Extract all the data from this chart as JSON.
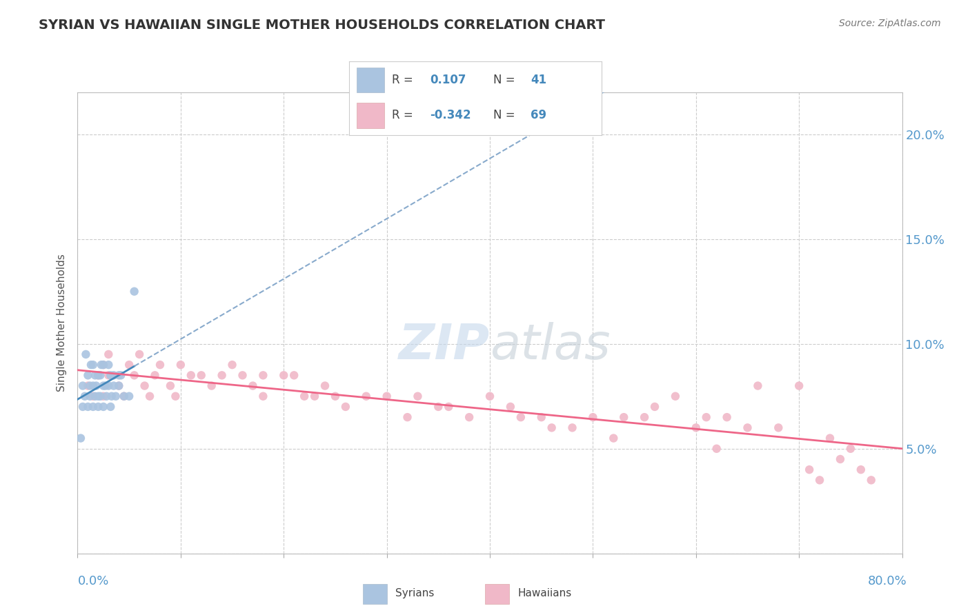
{
  "title": "SYRIAN VS HAWAIIAN SINGLE MOTHER HOUSEHOLDS CORRELATION CHART",
  "source": "Source: ZipAtlas.com",
  "ylabel": "Single Mother Households",
  "xlim": [
    0.0,
    80.0
  ],
  "ylim": [
    0.0,
    22.0
  ],
  "yticks": [
    0.0,
    5.0,
    10.0,
    15.0,
    20.0
  ],
  "xticks": [
    0,
    10,
    20,
    30,
    40,
    50,
    60,
    70,
    80
  ],
  "background_color": "#ffffff",
  "grid_color": "#cccccc",
  "syrians_color": "#aac4e0",
  "hawaiians_color": "#f0b8c8",
  "syrian_line_color": "#4488bb",
  "hawaiian_line_color": "#ee6688",
  "syrian_R": 0.107,
  "syrian_N": 41,
  "hawaiian_R": -0.342,
  "hawaiian_N": 69,
  "syrians_x": [
    0.3,
    0.5,
    0.5,
    0.7,
    0.8,
    1.0,
    1.0,
    1.2,
    1.2,
    1.3,
    1.5,
    1.5,
    1.5,
    1.7,
    1.7,
    1.8,
    2.0,
    2.0,
    2.0,
    2.2,
    2.2,
    2.3,
    2.5,
    2.5,
    2.5,
    2.7,
    2.8,
    3.0,
    3.0,
    3.2,
    3.2,
    3.3,
    3.5,
    3.5,
    3.7,
    4.0,
    4.0,
    4.2,
    4.5,
    5.0,
    5.5
  ],
  "syrians_y": [
    5.5,
    7.0,
    8.0,
    7.5,
    9.5,
    7.0,
    8.5,
    7.5,
    8.0,
    9.0,
    7.0,
    8.0,
    9.0,
    7.5,
    8.5,
    8.0,
    7.0,
    7.5,
    8.5,
    7.5,
    8.5,
    9.0,
    7.0,
    8.0,
    9.0,
    8.0,
    7.5,
    8.0,
    9.0,
    7.0,
    8.5,
    7.5,
    8.0,
    8.5,
    7.5,
    8.0,
    8.5,
    8.5,
    7.5,
    7.5,
    12.5
  ],
  "hawaiians_x": [
    1.0,
    1.5,
    2.0,
    2.5,
    2.5,
    3.0,
    3.0,
    4.0,
    4.5,
    5.0,
    5.5,
    6.0,
    6.5,
    7.0,
    7.5,
    8.0,
    9.0,
    9.5,
    10.0,
    11.0,
    12.0,
    13.0,
    14.0,
    15.0,
    16.0,
    17.0,
    18.0,
    18.0,
    20.0,
    21.0,
    22.0,
    23.0,
    24.0,
    25.0,
    26.0,
    28.0,
    30.0,
    32.0,
    33.0,
    35.0,
    36.0,
    38.0,
    40.0,
    42.0,
    43.0,
    45.0,
    46.0,
    48.0,
    50.0,
    52.0,
    53.0,
    55.0,
    56.0,
    58.0,
    60.0,
    61.0,
    62.0,
    63.0,
    65.0,
    66.0,
    68.0,
    70.0,
    71.0,
    72.0,
    73.0,
    74.0,
    75.0,
    76.0,
    77.0
  ],
  "hawaiians_y": [
    8.0,
    7.5,
    8.5,
    9.0,
    7.5,
    8.5,
    9.5,
    8.0,
    7.5,
    9.0,
    8.5,
    9.5,
    8.0,
    7.5,
    8.5,
    9.0,
    8.0,
    7.5,
    9.0,
    8.5,
    8.5,
    8.0,
    8.5,
    9.0,
    8.5,
    8.0,
    8.5,
    7.5,
    8.5,
    8.5,
    7.5,
    7.5,
    8.0,
    7.5,
    7.0,
    7.5,
    7.5,
    6.5,
    7.5,
    7.0,
    7.0,
    6.5,
    7.5,
    7.0,
    6.5,
    6.5,
    6.0,
    6.0,
    6.5,
    5.5,
    6.5,
    6.5,
    7.0,
    7.5,
    6.0,
    6.5,
    5.0,
    6.5,
    6.0,
    8.0,
    6.0,
    8.0,
    4.0,
    3.5,
    5.5,
    4.5,
    5.0,
    4.0,
    3.5
  ]
}
